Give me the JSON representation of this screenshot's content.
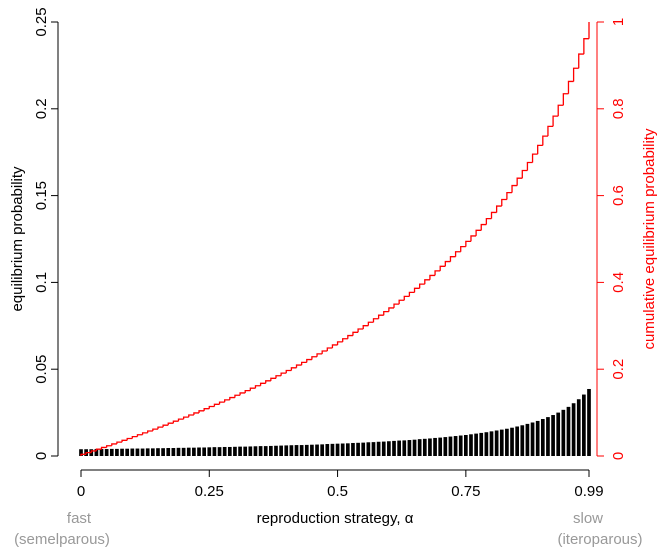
{
  "chart_data": {
    "type": "bar",
    "xlabel": "reproduction strategy, α",
    "ylabel": "equilibrium probability",
    "y2label": "cumulative equilibrium probability",
    "annotations": [
      "fast",
      "(semelparous)",
      "slow",
      "(iteroparous)"
    ],
    "x": [
      0,
      0.01,
      0.02,
      0.03,
      0.04,
      0.05,
      0.06,
      0.07,
      0.08,
      0.09,
      0.1,
      0.11,
      0.12,
      0.13,
      0.14,
      0.15,
      0.16,
      0.17,
      0.18,
      0.19,
      0.2,
      0.21,
      0.22,
      0.23,
      0.24,
      0.25,
      0.26,
      0.27,
      0.28,
      0.29,
      0.3,
      0.31,
      0.32,
      0.33,
      0.34,
      0.35,
      0.36,
      0.37,
      0.38,
      0.39,
      0.4,
      0.41,
      0.42,
      0.43,
      0.44,
      0.45,
      0.46,
      0.47,
      0.48,
      0.49,
      0.5,
      0.51,
      0.52,
      0.53,
      0.54,
      0.55,
      0.56,
      0.57,
      0.58,
      0.59,
      0.6,
      0.61,
      0.62,
      0.63,
      0.64,
      0.65,
      0.66,
      0.67,
      0.68,
      0.69,
      0.7,
      0.71,
      0.72,
      0.73,
      0.74,
      0.75,
      0.76,
      0.77,
      0.78,
      0.79,
      0.8,
      0.81,
      0.82,
      0.83,
      0.84,
      0.85,
      0.86,
      0.87,
      0.88,
      0.89,
      0.9,
      0.91,
      0.92,
      0.93,
      0.94,
      0.95,
      0.96,
      0.97,
      0.98,
      0.99
    ],
    "series": [
      {
        "type": "bar",
        "color": "#000000",
        "values": [
          0.0039,
          0.0039,
          0.0039,
          0.004,
          0.004,
          0.004,
          0.0041,
          0.0041,
          0.0042,
          0.0042,
          0.0043,
          0.0043,
          0.0043,
          0.0044,
          0.0044,
          0.0045,
          0.0045,
          0.0046,
          0.0046,
          0.0047,
          0.0047,
          0.0048,
          0.0048,
          0.0049,
          0.0049,
          0.005,
          0.0051,
          0.0051,
          0.0052,
          0.0052,
          0.0053,
          0.0054,
          0.0054,
          0.0055,
          0.0056,
          0.0057,
          0.0057,
          0.0058,
          0.0059,
          0.006,
          0.0061,
          0.0062,
          0.0063,
          0.0063,
          0.0064,
          0.0065,
          0.0066,
          0.0067,
          0.0069,
          0.007,
          0.0071,
          0.0072,
          0.0073,
          0.0075,
          0.0076,
          0.0077,
          0.0079,
          0.008,
          0.0082,
          0.0083,
          0.0085,
          0.0087,
          0.0089,
          0.009,
          0.0092,
          0.0094,
          0.0097,
          0.0099,
          0.0101,
          0.0104,
          0.0106,
          0.0109,
          0.0112,
          0.0115,
          0.0118,
          0.0121,
          0.0125,
          0.0129,
          0.0133,
          0.0137,
          0.0142,
          0.0147,
          0.0152,
          0.0157,
          0.0163,
          0.017,
          0.0177,
          0.0185,
          0.0193,
          0.0202,
          0.0213,
          0.0224,
          0.0236,
          0.025,
          0.0266,
          0.0283,
          0.0304,
          0.0327,
          0.0354,
          0.0386
        ]
      },
      {
        "type": "step",
        "axis": "y2",
        "color": "#ff0000",
        "values": [
          0.0039,
          0.0078,
          0.0117,
          0.0157,
          0.0197,
          0.0237,
          0.0278,
          0.0319,
          0.0361,
          0.0403,
          0.0446,
          0.0489,
          0.0532,
          0.0576,
          0.062,
          0.0665,
          0.071,
          0.0756,
          0.0802,
          0.0849,
          0.0896,
          0.0944,
          0.0992,
          0.1041,
          0.109,
          0.114,
          0.1191,
          0.1242,
          0.1294,
          0.1346,
          0.1399,
          0.1453,
          0.1507,
          0.1562,
          0.1618,
          0.1675,
          0.1732,
          0.179,
          0.1849,
          0.1909,
          0.197,
          0.2032,
          0.2095,
          0.2158,
          0.2222,
          0.2287,
          0.2353,
          0.242,
          0.2489,
          0.2559,
          0.263,
          0.2702,
          0.2775,
          0.285,
          0.2926,
          0.3003,
          0.3082,
          0.3162,
          0.3244,
          0.3327,
          0.3412,
          0.3499,
          0.3588,
          0.3678,
          0.377,
          0.3864,
          0.3961,
          0.406,
          0.4161,
          0.4265,
          0.4371,
          0.448,
          0.4592,
          0.4707,
          0.4825,
          0.4946,
          0.5071,
          0.52,
          0.5333,
          0.547,
          0.5612,
          0.5759,
          0.5911,
          0.6068,
          0.6231,
          0.6401,
          0.6578,
          0.6763,
          0.6956,
          0.7158,
          0.7371,
          0.7595,
          0.7831,
          0.8081,
          0.8347,
          0.863,
          0.8934,
          0.9261,
          0.9615,
          1
        ]
      }
    ],
    "xlim": [
      0,
      0.99
    ],
    "xticks": [
      0,
      0.25,
      0.5,
      0.75,
      0.99
    ],
    "ylim": [
      0,
      0.25
    ],
    "yticks": [
      0,
      0.05,
      0.1,
      0.15,
      0.2,
      0.25
    ],
    "y2lim": [
      0,
      1
    ],
    "y2ticks": [
      0,
      0.2,
      0.4,
      0.6,
      0.8,
      1
    ],
    "y2color": "#ff0000",
    "grid": false
  }
}
